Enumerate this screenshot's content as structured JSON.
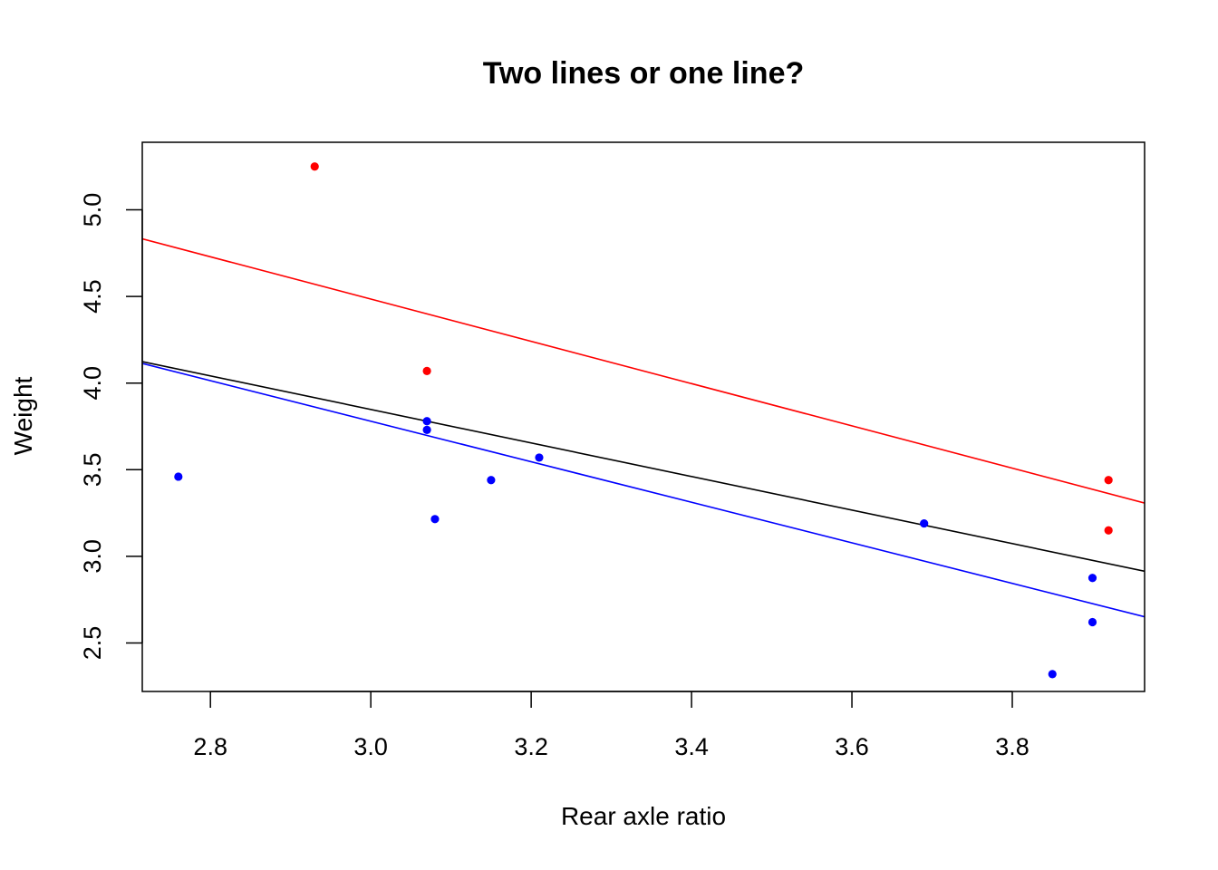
{
  "chart_data": {
    "type": "scatter",
    "title": "Two lines or one line?",
    "xlabel": "Rear axle ratio",
    "ylabel": "Weight",
    "xlim": [
      2.715,
      3.965
    ],
    "ylim": [
      2.22,
      5.39
    ],
    "x_ticks": [
      "2.8",
      "3.0",
      "3.2",
      "3.4",
      "3.6",
      "3.8"
    ],
    "y_ticks": [
      "2.5",
      "3.0",
      "3.5",
      "4.0",
      "4.5",
      "5.0"
    ],
    "grid": false,
    "legend": "none",
    "series": [
      {
        "color": "#ff0000",
        "points": [
          [
            2.93,
            5.25
          ],
          [
            3.07,
            4.07
          ],
          [
            3.92,
            3.44
          ],
          [
            3.92,
            3.15
          ]
        ]
      },
      {
        "color": "#0000ff",
        "points": [
          [
            2.76,
            3.46
          ],
          [
            3.07,
            3.78
          ],
          [
            3.07,
            3.73
          ],
          [
            3.08,
            3.215
          ],
          [
            3.15,
            3.44
          ],
          [
            3.21,
            3.57
          ],
          [
            3.69,
            3.19
          ],
          [
            3.85,
            2.32
          ],
          [
            3.9,
            2.875
          ],
          [
            3.9,
            2.62
          ]
        ]
      }
    ],
    "lines": [
      {
        "color": "#ff0000",
        "intercept": 8.145,
        "slope": -1.22
      },
      {
        "color": "#000000",
        "intercept": 6.752,
        "slope": -0.968
      },
      {
        "color": "#0000ff",
        "intercept": 7.29,
        "slope": -1.17
      }
    ]
  }
}
